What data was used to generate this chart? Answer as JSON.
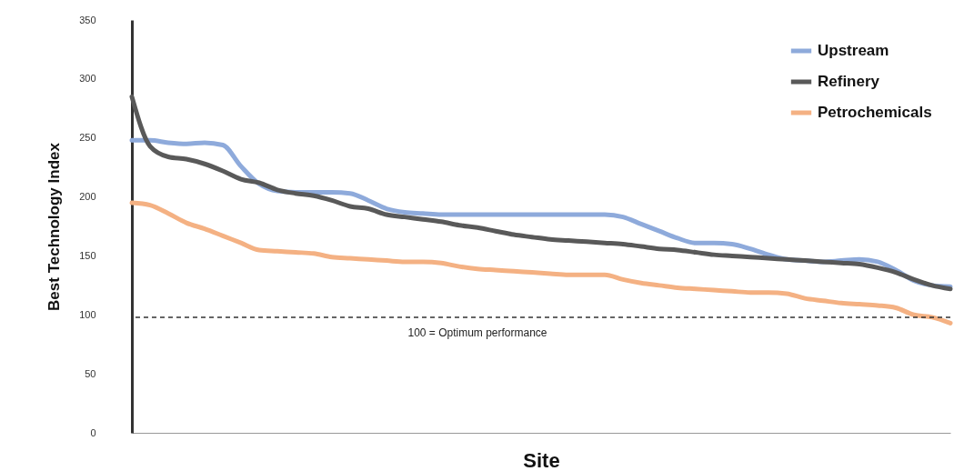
{
  "chart_data": {
    "type": "line",
    "xlabel": "Site",
    "ylabel": "Best Technology Index",
    "categories": [
      null,
      null,
      null,
      null,
      null,
      null,
      null,
      null,
      null,
      null,
      null,
      null,
      null,
      null,
      null,
      null,
      null,
      null,
      null,
      null,
      null,
      null,
      null,
      null,
      null,
      null,
      null,
      null,
      null,
      null,
      null,
      null,
      null,
      null,
      null,
      null,
      null,
      null,
      null,
      null,
      null,
      null,
      null,
      null,
      null,
      null
    ],
    "series": [
      {
        "name": "Upstream",
        "color": "#8eaadb",
        "values": [
          248,
          248,
          246,
          245,
          246,
          244,
          226,
          211,
          205,
          204,
          204,
          204,
          203,
          197,
          190,
          187,
          186,
          185,
          185,
          185,
          185,
          185,
          185,
          185,
          185,
          185,
          185,
          183,
          177,
          171,
          165,
          161,
          161,
          160,
          156,
          151,
          147,
          146,
          145,
          146,
          147,
          145,
          138,
          129,
          125,
          124
        ]
      },
      {
        "name": "Refinery",
        "color": "#595959",
        "values": [
          285,
          243,
          234,
          232,
          228,
          222,
          215,
          212,
          206,
          203,
          201,
          197,
          192,
          190,
          185,
          183,
          181,
          179,
          176,
          174,
          171,
          168,
          166,
          164,
          163,
          162,
          161,
          160,
          158,
          156,
          155,
          153,
          151,
          150,
          149,
          148,
          147,
          146,
          145,
          144,
          143,
          140,
          136,
          130,
          125,
          122
        ]
      },
      {
        "name": "Petrochemicals",
        "color": "#f4b183",
        "values": [
          195,
          193,
          186,
          178,
          173,
          167,
          161,
          155,
          154,
          153,
          152,
          149,
          148,
          147,
          146,
          145,
          145,
          144,
          141,
          139,
          138,
          137,
          136,
          135,
          134,
          134,
          134,
          130,
          127,
          125,
          123,
          122,
          121,
          120,
          119,
          119,
          118,
          114,
          112,
          110,
          109,
          108,
          106,
          100,
          98,
          93
        ]
      }
    ],
    "ylim": [
      0,
      350
    ],
    "yticks": [
      0,
      50,
      100,
      150,
      200,
      250,
      300,
      350
    ],
    "ref_lines": [
      {
        "axis": "y",
        "value": 98,
        "label": "100 = Optimum performance",
        "color": "#333333",
        "line_style": "dashed"
      }
    ],
    "legend": "top right",
    "tick_labels": "y",
    "grid": false,
    "line_style": "solid"
  }
}
